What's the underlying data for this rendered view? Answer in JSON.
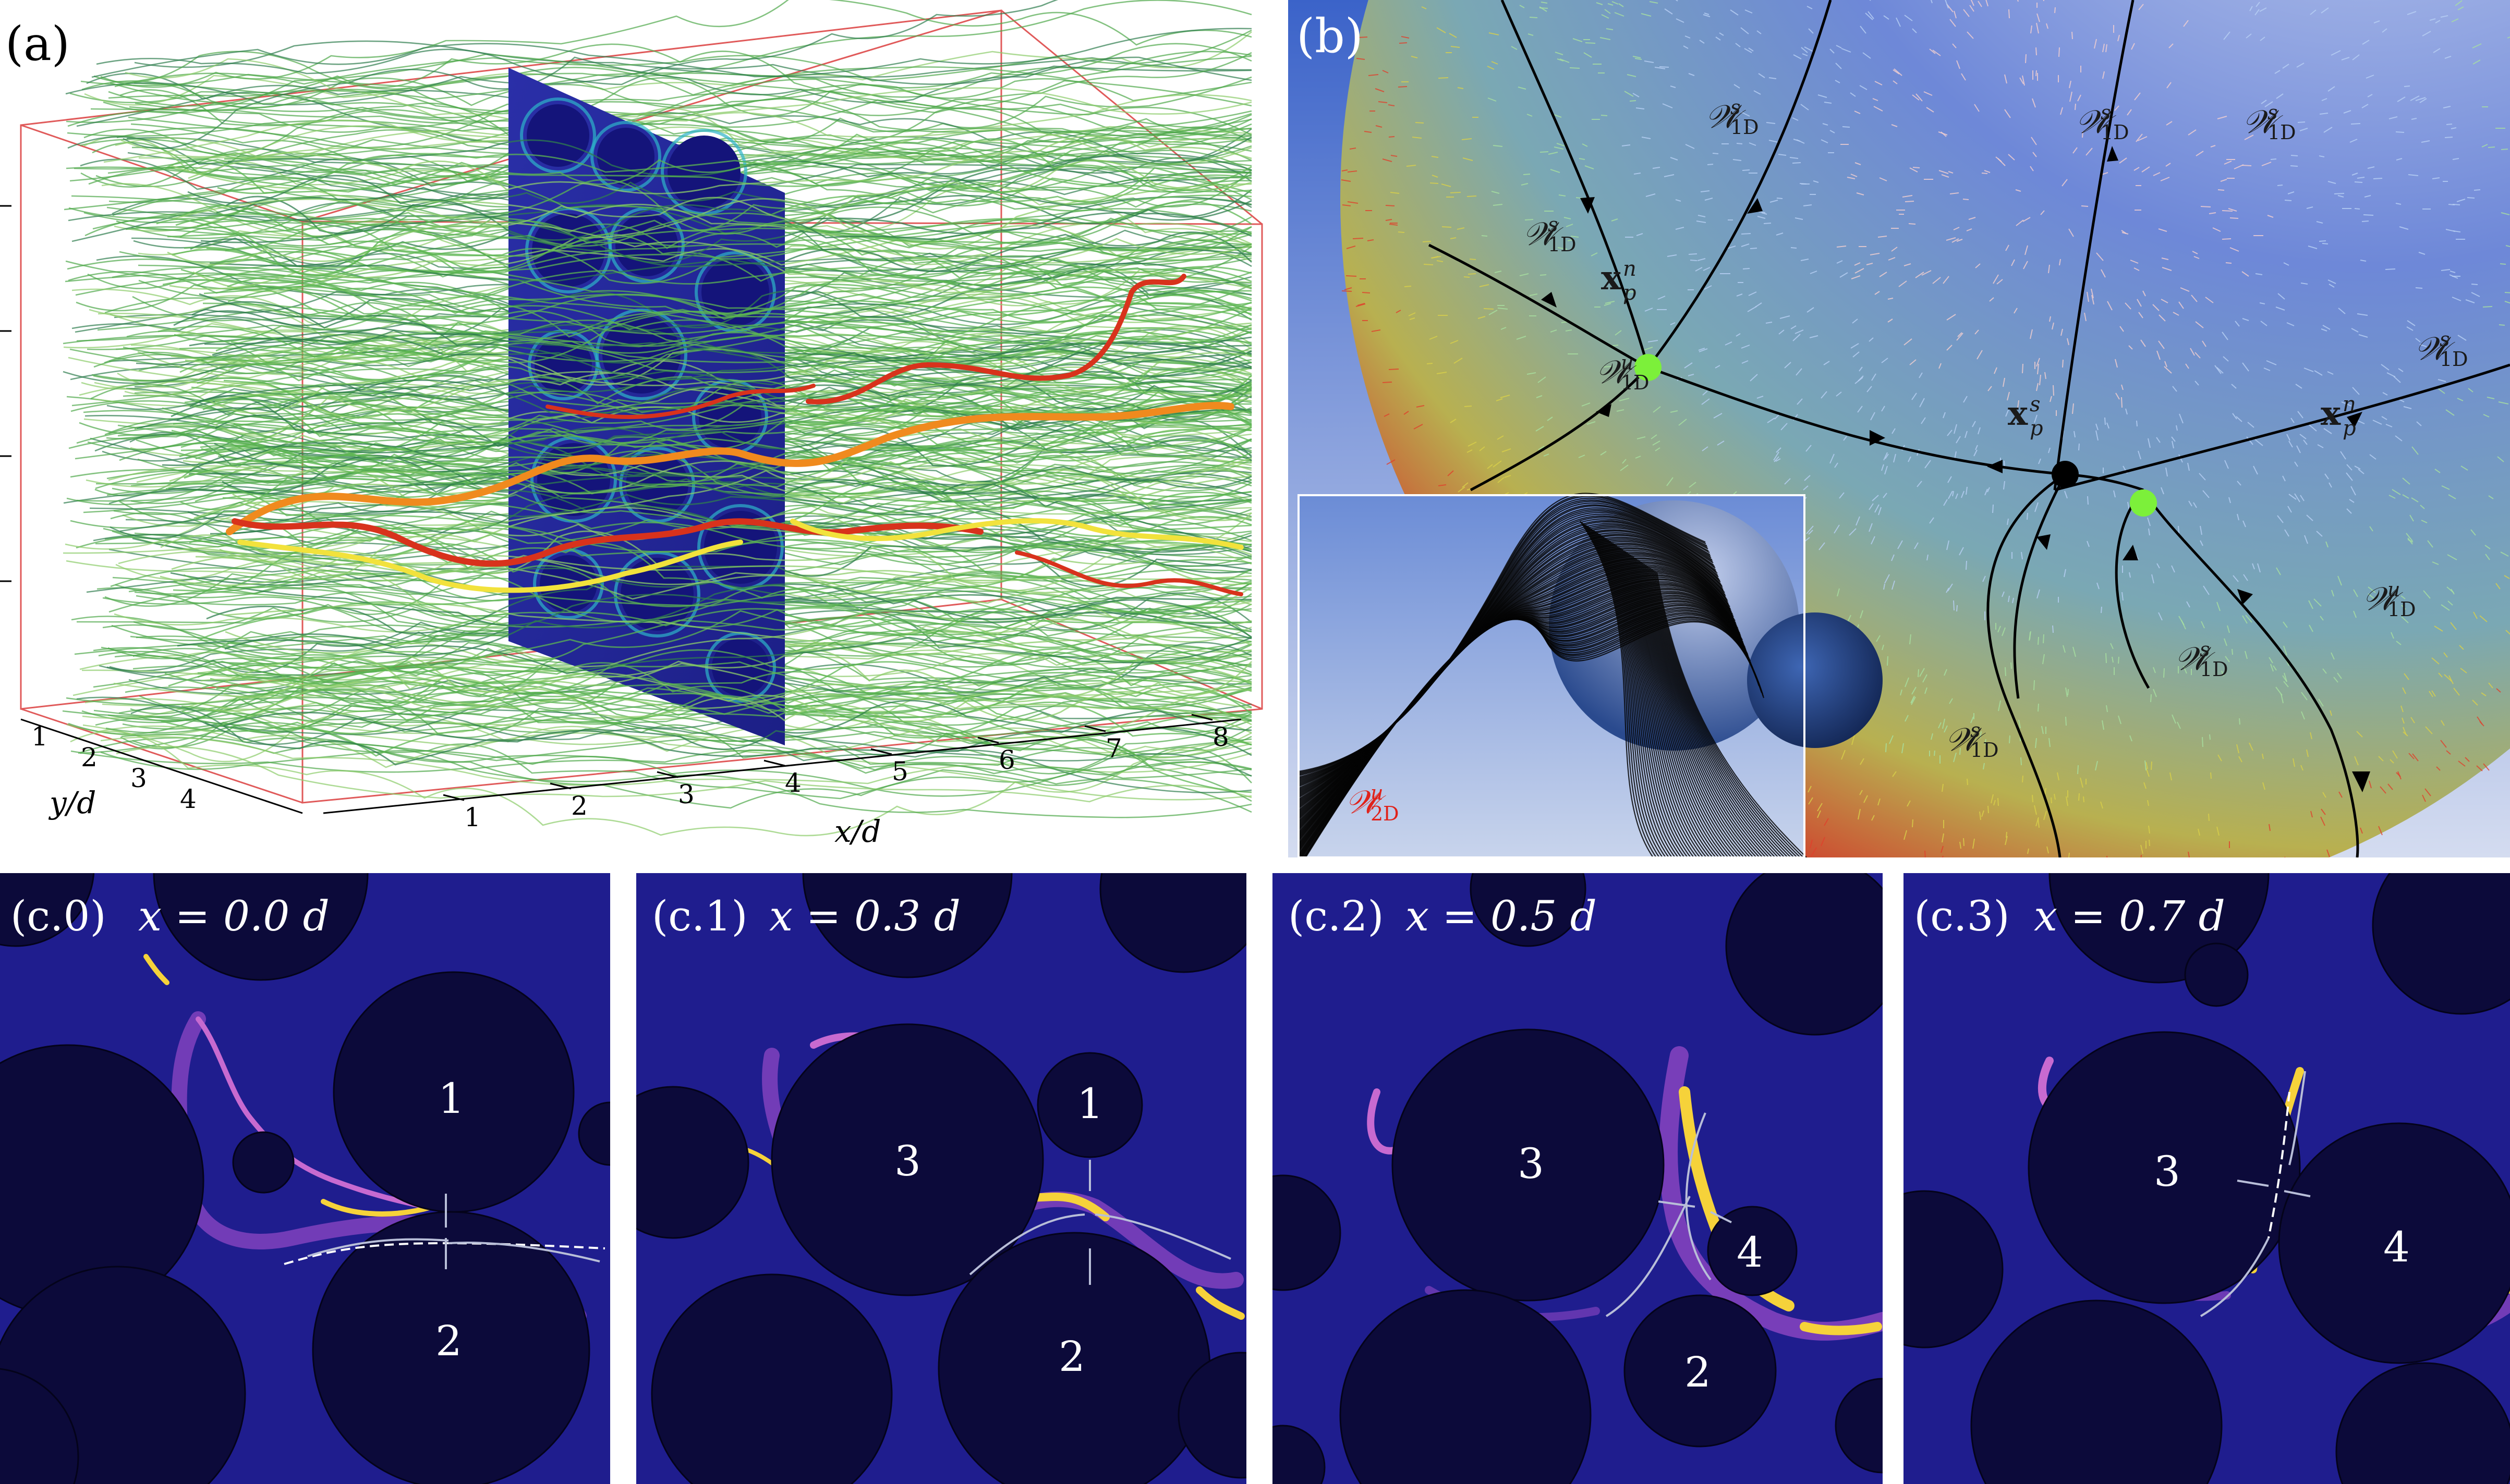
{
  "panel_a": {
    "label": "(a)",
    "x_axis": {
      "label": "x/d",
      "ticks": [
        "1",
        "2",
        "3",
        "4",
        "5",
        "6",
        "7",
        "8"
      ]
    },
    "y_axis": {
      "label": "y/d",
      "ticks": [
        "1",
        "2",
        "3",
        "4"
      ]
    }
  },
  "panel_b": {
    "label": "(b)",
    "manifold_labels": {
      "ws1": "𝒲",
      "ws1_sup": "s",
      "ws1_sub": "1D",
      "wu1": "𝒲",
      "wu1_sup": "u",
      "wu1_sub": "1D",
      "wu2": "𝒲",
      "wu2_sup": "u",
      "wu2_sub": "2D"
    },
    "point_labels": {
      "node": "x",
      "node_sup": "n",
      "node_sub": "p",
      "saddle": "x",
      "saddle_sup": "s",
      "saddle_sub": "p"
    }
  },
  "panels_c": [
    {
      "label": "(c.0)",
      "equation": "x = 0.0 d",
      "pores": [
        "1",
        "2"
      ]
    },
    {
      "label": "(c.1)",
      "equation": "x = 0.3 d",
      "pores": [
        "3",
        "1",
        "2"
      ]
    },
    {
      "label": "(c.2)",
      "equation": "x = 0.5 d",
      "pores": [
        "3",
        "4",
        "2"
      ]
    },
    {
      "label": "(c.3)",
      "equation": "x = 0.7 d",
      "pores": [
        "3",
        "4"
      ]
    }
  ],
  "colors": {
    "node": "#7cf03a",
    "saddle": "#000000",
    "red_path": "#d8321c",
    "orange_path": "#f08a1e",
    "yellow_path": "#f2e23c",
    "streamline": "#4fa84a",
    "box_edge": "#e05a5a",
    "cross_section": "#23228c",
    "background_flow": "#1f1d8e",
    "obstacle": "#0c0a3a",
    "highlight": "#f6d23a",
    "manifold": "#8f47c4"
  }
}
